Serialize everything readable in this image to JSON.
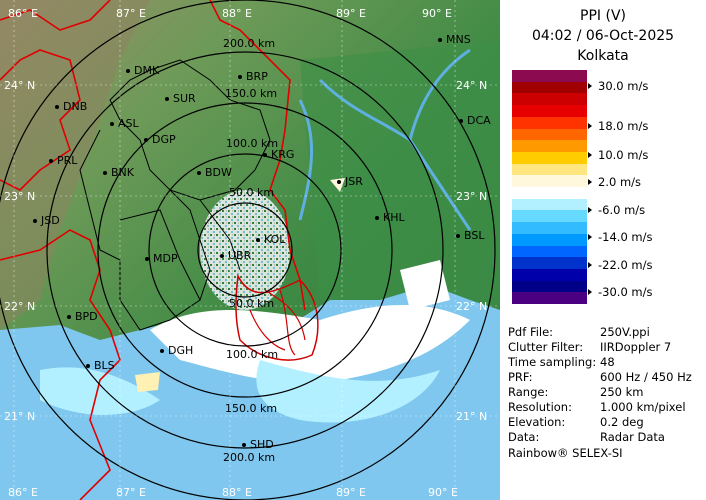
{
  "panel": {
    "title": "PPI (V)",
    "datetime": "04:02 / 06-Oct-2025",
    "station": "Kolkata"
  },
  "legend": {
    "colors": [
      "#8b0a50",
      "#a00000",
      "#cc0000",
      "#e60000",
      "#ff3300",
      "#ff6600",
      "#ff9900",
      "#ffcc00",
      "#ffe680",
      "#fff8dc",
      "#ffffff",
      "#b3f0ff",
      "#66d9ff",
      "#33bbff",
      "#0099ff",
      "#0066ff",
      "#0033cc",
      "#0000aa",
      "#000088",
      "#4b0082"
    ],
    "ticks": [
      "30.0 m/s",
      "18.0 m/s",
      "10.0 m/s",
      "2.0 m/s",
      "-6.0 m/s",
      "-14.0 m/s",
      "-22.0 m/s",
      "-30.0 m/s"
    ]
  },
  "info": [
    {
      "label": "Pdf File:",
      "value": "250V.ppi"
    },
    {
      "label": "Clutter Filter:",
      "value": "IIRDoppler 7"
    },
    {
      "label": "Time sampling:",
      "value": "48"
    },
    {
      "label": "PRF:",
      "value": "600 Hz / 450 Hz"
    },
    {
      "label": "Range:",
      "value": "250 km"
    },
    {
      "label": "Resolution:",
      "value": "1.000 km/pixel"
    },
    {
      "label": "Elevation:",
      "value": "0.2 deg"
    },
    {
      "label": "Data:",
      "value": "Radar Data"
    }
  ],
  "credit": "Rainbow® SELEX-SI",
  "map": {
    "lon_labels": [
      "86° E",
      "87° E",
      "88° E",
      "89° E",
      "90° E"
    ],
    "lat_labels": [
      "24° N",
      "23° N",
      "22° N",
      "21° N"
    ],
    "range_labels": [
      "200.0 km",
      "150.0 km",
      "100.0 km",
      "50.0 km",
      "50.0 km",
      "100.0 km",
      "150.0 km",
      "200.0 km"
    ],
    "stations": [
      "MNS",
      "DMK",
      "BRP",
      "DNB",
      "SUR",
      "ASL",
      "DGP",
      "DCA",
      "PRL",
      "BNK",
      "KRG",
      "BDW",
      "JSR",
      "KHL",
      "JSD",
      "BSL",
      "MDP",
      "KOL",
      "UBR",
      "BPD",
      "DGH",
      "BLS",
      "SHD"
    ],
    "colors": {
      "boundary": "#e00000",
      "district": "#000000",
      "sea": "#7fc7ee",
      "lowland": "#4a8f4a"
    }
  }
}
